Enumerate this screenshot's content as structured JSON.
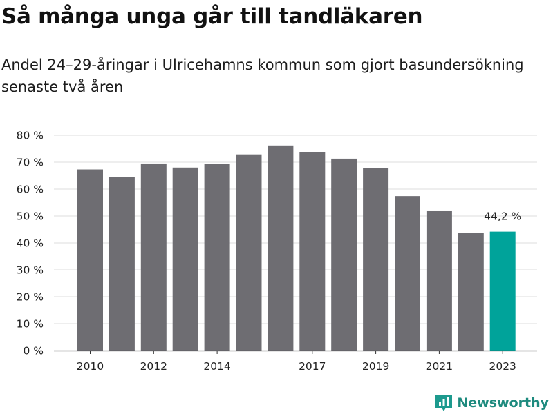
{
  "header": {
    "title": "Så många unga går till tandläkaren",
    "subtitle": "Andel 24–29-åringar i Ulricehamns kommun som gjort basundersökning senaste två åren"
  },
  "brand": {
    "name": "Newsworthy",
    "icon": "newsworthy-logo-icon",
    "color": "#1d9a8e"
  },
  "colors": {
    "bar": "#6e6d72",
    "highlight": "#00a39a",
    "grid": "#dddddd",
    "axis": "#333333"
  },
  "chart_data": {
    "type": "bar",
    "title": "Så många unga går till tandläkaren",
    "subtitle": "Andel 24–29-åringar i Ulricehamns kommun som gjort basundersökning senaste två åren",
    "xlabel": "",
    "ylabel": "",
    "categories": [
      "2010",
      "2011",
      "2012",
      "2013",
      "2014",
      "2015",
      "2016",
      "2017",
      "2018",
      "2019",
      "2020",
      "2021",
      "2022",
      "2023"
    ],
    "values": [
      67.3,
      64.6,
      69.5,
      68.0,
      69.3,
      72.9,
      76.2,
      73.6,
      71.3,
      67.9,
      57.4,
      51.8,
      43.6,
      44.2
    ],
    "x_tick_labels": [
      {
        "category": "2010",
        "label": "2010"
      },
      {
        "category": "2012",
        "label": "2012"
      },
      {
        "category": "2014",
        "label": "2014"
      },
      {
        "category": "2017",
        "label": "2017"
      },
      {
        "category": "2019",
        "label": "2019"
      },
      {
        "category": "2021",
        "label": "2021"
      },
      {
        "category": "2023",
        "label": "2023"
      }
    ],
    "ylim": [
      0,
      80
    ],
    "y_ticks": [
      0,
      10,
      20,
      30,
      40,
      50,
      60,
      70,
      80
    ],
    "y_tick_suffix": " %",
    "grid": true,
    "highlight_category": "2023",
    "annotations": [
      {
        "category": "2023",
        "text": "44,2 %"
      }
    ]
  }
}
